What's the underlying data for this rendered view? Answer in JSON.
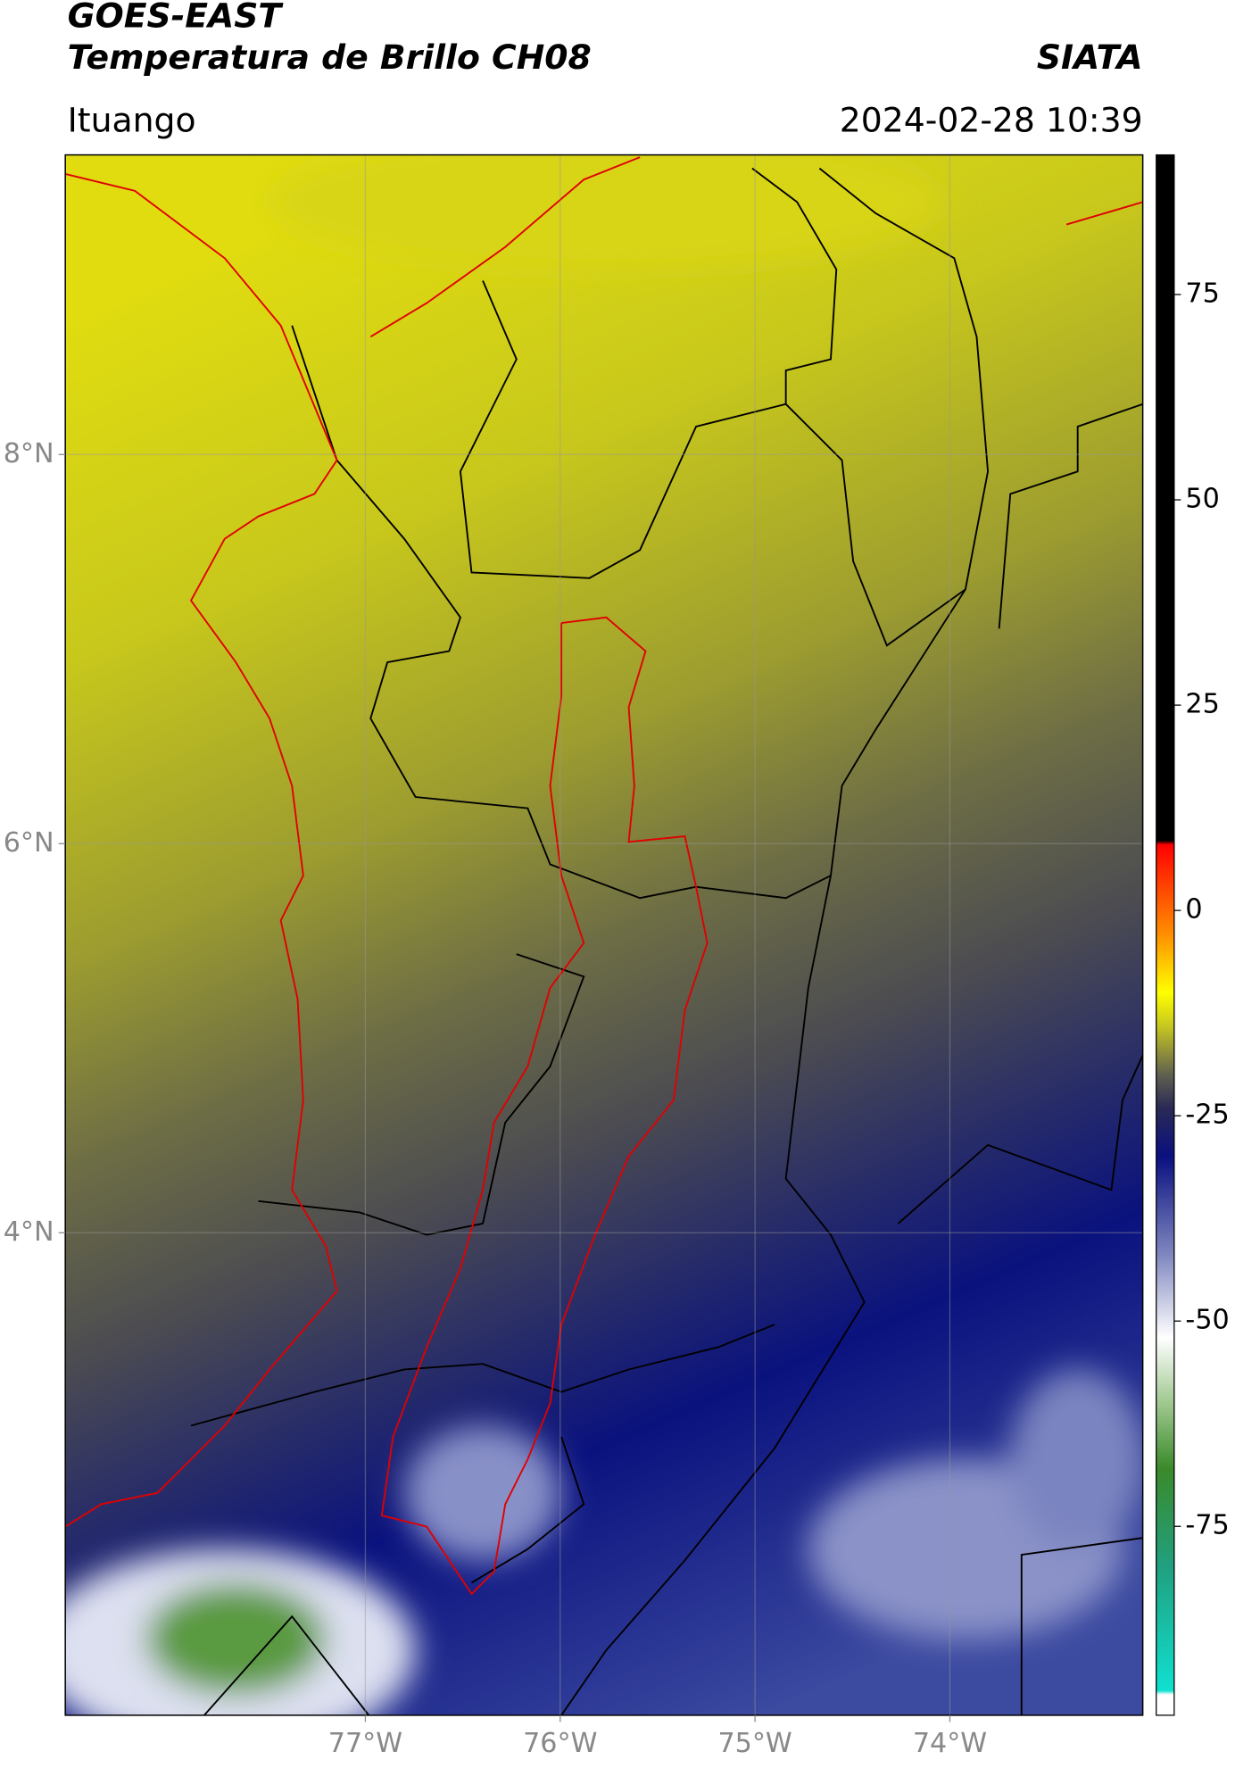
{
  "chart_data": {
    "type": "map",
    "title": "GOES-EAST",
    "subtitle": "Temperatura de Brillo CH08",
    "source": "SIATA",
    "region": "Ituango",
    "timestamp": "2024-02-28 10:39",
    "xlim": [
      -78.54,
      -73.01
    ],
    "ylim": [
      1.52,
      9.54
    ],
    "xticks": [
      {
        "value": -77,
        "label": "77°W"
      },
      {
        "value": -76,
        "label": "76°W"
      },
      {
        "value": -75,
        "label": "75°W"
      },
      {
        "value": -74,
        "label": "74°W"
      }
    ],
    "yticks": [
      {
        "value": 8,
        "label": "8°N"
      },
      {
        "value": 6,
        "label": "6°N"
      },
      {
        "value": 4,
        "label": "4°N"
      }
    ],
    "grid": true,
    "colorbar": {
      "clim": [
        -98,
        92
      ],
      "ticks": [
        75,
        50,
        25,
        0,
        -25,
        -50,
        -75
      ],
      "stops": [
        {
          "value": -98,
          "color": "#ffffff"
        },
        {
          "value": -95.5,
          "color": "#ffffff"
        },
        {
          "value": -95,
          "color": "#10e0d0"
        },
        {
          "value": -80,
          "color": "#20a080"
        },
        {
          "value": -68,
          "color": "#3a8a2a"
        },
        {
          "value": -60,
          "color": "#a0c890"
        },
        {
          "value": -52,
          "color": "#ffffff"
        },
        {
          "value": -42,
          "color": "#8088c0"
        },
        {
          "value": -30,
          "color": "#0a1080"
        },
        {
          "value": -24,
          "color": "#2a2a55"
        },
        {
          "value": -20,
          "color": "#606050"
        },
        {
          "value": -14,
          "color": "#c8c820"
        },
        {
          "value": -10,
          "color": "#ffff00"
        },
        {
          "value": -3,
          "color": "#ff9000"
        },
        {
          "value": 8,
          "color": "#ff0000"
        },
        {
          "value": 8.5,
          "color": "#000000"
        },
        {
          "value": 92,
          "color": "#000000"
        }
      ]
    }
  }
}
